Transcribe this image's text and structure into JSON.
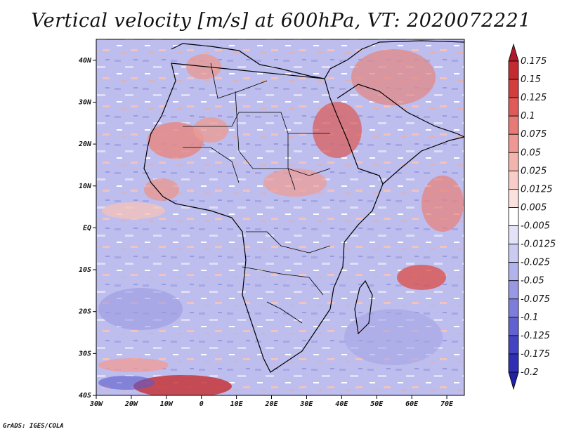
{
  "title": "Vertical velocity [m/s] at 600hPa, VT: 2020072221",
  "credit": "GrADS: IGES/COLA",
  "map": {
    "lon_range": [
      -30,
      75
    ],
    "lat_range": [
      -40,
      45
    ],
    "lat_ticks": [
      "40N",
      "30N",
      "20N",
      "10N",
      "EQ",
      "10S",
      "20S",
      "30S",
      "40S"
    ],
    "lon_ticks": [
      "30W",
      "20W",
      "10W",
      "0",
      "10E",
      "20E",
      "30E",
      "40E",
      "50E",
      "60E",
      "70E"
    ]
  },
  "colorbar": {
    "labels": [
      "0.175",
      "0.15",
      "0.125",
      "0.1",
      "0.075",
      "0.05",
      "0.025",
      "0.0125",
      "0.005",
      "-0.005",
      "-0.0125",
      "-0.025",
      "-0.05",
      "-0.075",
      "-0.1",
      "-0.125",
      "-0.175",
      "-0.2"
    ],
    "colors": [
      "#b2182b",
      "#c42b30",
      "#d33d3d",
      "#e05a58",
      "#e87a76",
      "#ef9893",
      "#f4b4ae",
      "#f8ccc7",
      "#fbe2de",
      "#ffffff",
      "#e2e2f8",
      "#cbcbf2",
      "#b2b2ec",
      "#9898e4",
      "#7d7ddb",
      "#6161d1",
      "#4444c3",
      "#2f2fb3",
      "#2121a3"
    ]
  }
}
